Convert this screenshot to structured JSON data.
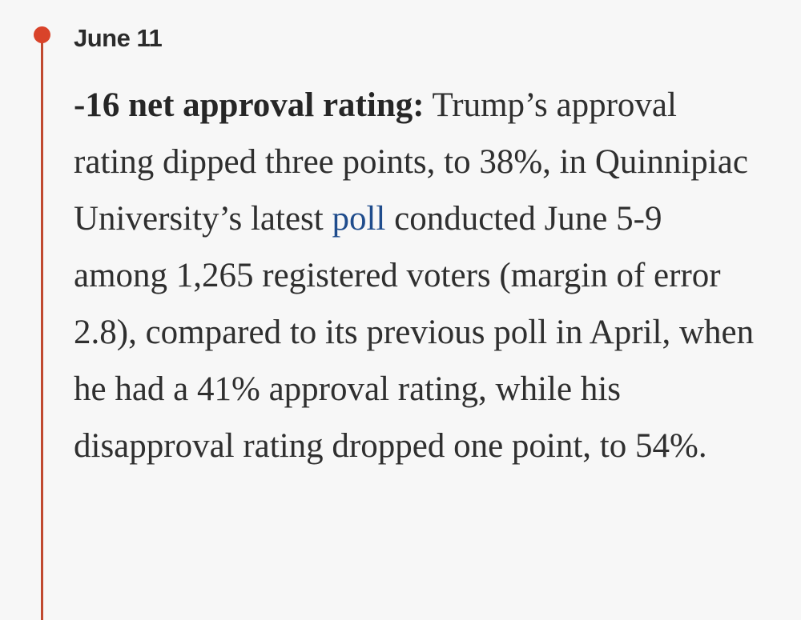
{
  "entry": {
    "date": "June 11",
    "lead": "-16 net approval rating:",
    "text_before_link": " Trump’s approval rating dipped three points, to 38%, in Quinnipiac University’s latest ",
    "link_text": "poll",
    "text_after_link": " conducted June 5-9 among 1,265 registered voters (margin of error 2.8), compared to its previous poll in April, when he had a 41% approval rating, while his disapproval rating dropped one point, to 54%."
  },
  "colors": {
    "timeline": "#c0492f",
    "dot": "#d9432a",
    "link": "#1f4c8c",
    "text": "#2f2f2f",
    "background": "#f7f7f7"
  },
  "icons": {
    "timeline_marker": "timeline-dot-icon"
  }
}
